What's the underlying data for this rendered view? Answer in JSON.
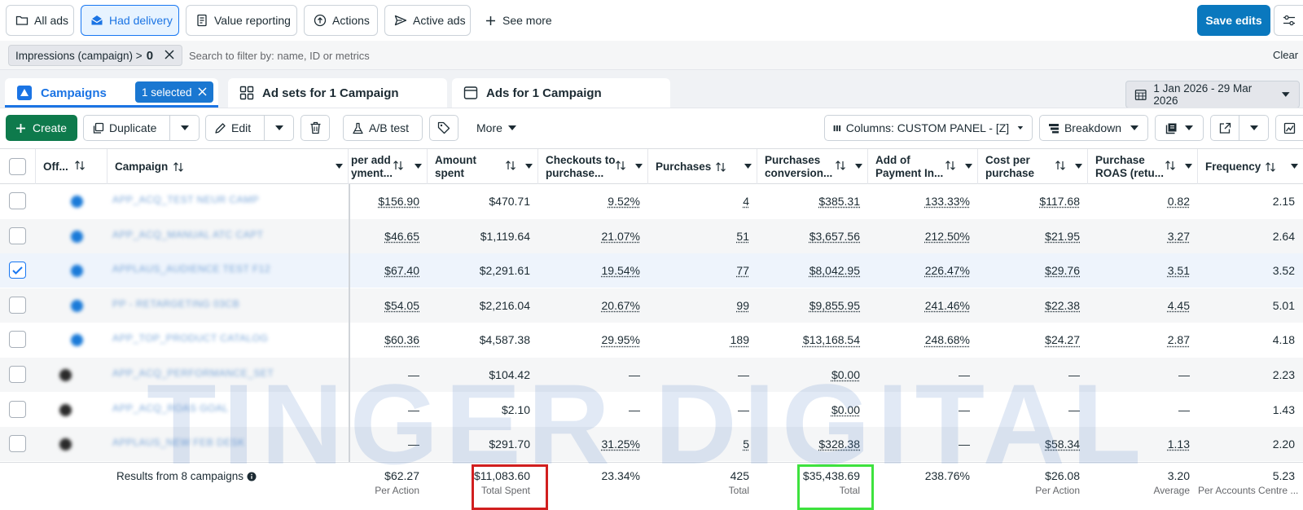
{
  "topbar": {
    "views": [
      {
        "label": "All ads",
        "icon": "folder-icon"
      },
      {
        "label": "Had delivery",
        "icon": "envelope-icon"
      },
      {
        "label": "Value reporting",
        "icon": "document-icon"
      },
      {
        "label": "Actions",
        "icon": "upload-icon"
      },
      {
        "label": "Active ads",
        "icon": "send-icon"
      }
    ],
    "see_more": "See more",
    "save_label": "Save edits"
  },
  "filter": {
    "chip_label": "Impressions (campaign) >",
    "chip_value": "0",
    "search_placeholder": "Search to filter by: name, ID or metrics",
    "clear_label": "Clear"
  },
  "tabs": {
    "campaigns": "Campaigns",
    "selected_badge": "1 selected",
    "adsets": "Ad sets for 1 Campaign",
    "ads": "Ads for 1 Campaign",
    "date_range": "1 Jan 2026 - 29 Mar 2026"
  },
  "toolbar": {
    "create": "Create",
    "duplicate": "Duplicate",
    "edit": "Edit",
    "ab_test": "A/B test",
    "more": "More",
    "columns": "Columns: CUSTOM PANEL - [Z]",
    "breakdown": "Breakdown"
  },
  "table": {
    "headers": {
      "off": "Off...",
      "campaign": "Campaign",
      "cost_per_add": [
        "per add",
        "yment..."
      ],
      "amount_spent": [
        "Amount",
        "spent"
      ],
      "checkouts": [
        "Checkouts to",
        "purchase..."
      ],
      "purchases": "Purchases",
      "purchases_conversion": [
        "Purchases",
        "conversion..."
      ],
      "add_payment": [
        "Add of",
        "Payment In..."
      ],
      "cost_per_purchase": [
        "Cost per",
        "purchase"
      ],
      "purchase_roas": [
        "Purchase",
        "ROAS (retu..."
      ],
      "frequency": "Frequency"
    },
    "rows": [
      {
        "status": "on",
        "checked": false,
        "name": "APP_ACQ_TEST NEUR CAMP",
        "cost_per_add": "$156.90",
        "amount_spent": "$470.71",
        "checkouts": "9.52%",
        "purchases": "4",
        "conv_value": "$385.31",
        "add_payment": "133.33%",
        "cost_per_purchase": "$117.68",
        "roas": "0.82",
        "frequency": "2.15"
      },
      {
        "status": "on",
        "checked": false,
        "name": "APP_ACQ_MANUAL ATC CAPT",
        "cost_per_add": "$46.65",
        "amount_spent": "$1,119.64",
        "checkouts": "21.07%",
        "purchases": "51",
        "conv_value": "$3,657.56",
        "add_payment": "212.50%",
        "cost_per_purchase": "$21.95",
        "roas": "3.27",
        "frequency": "2.64"
      },
      {
        "status": "on",
        "checked": true,
        "name": "APPLAUS_AUDIENCE TEST F12",
        "cost_per_add": "$67.40",
        "amount_spent": "$2,291.61",
        "checkouts": "19.54%",
        "purchases": "77",
        "conv_value": "$8,042.95",
        "add_payment": "226.47%",
        "cost_per_purchase": "$29.76",
        "roas": "3.51",
        "frequency": "3.52"
      },
      {
        "status": "on",
        "checked": false,
        "name": "PP - RETARGETING 03CB",
        "cost_per_add": "$54.05",
        "amount_spent": "$2,216.04",
        "checkouts": "20.67%",
        "purchases": "99",
        "conv_value": "$9,855.95",
        "add_payment": "241.46%",
        "cost_per_purchase": "$22.38",
        "roas": "4.45",
        "frequency": "5.01"
      },
      {
        "status": "on",
        "checked": false,
        "name": "APP_TOP_PRODUCT CATALOG",
        "cost_per_add": "$60.36",
        "amount_spent": "$4,587.38",
        "checkouts": "29.95%",
        "purchases": "189",
        "conv_value": "$13,168.54",
        "add_payment": "248.68%",
        "cost_per_purchase": "$24.27",
        "roas": "2.87",
        "frequency": "4.18"
      },
      {
        "status": "off",
        "checked": false,
        "name": "APP_ACQ_PERFORMANCE_SET",
        "cost_per_add": "—",
        "amount_spent": "$104.42",
        "checkouts": "—",
        "purchases": "—",
        "conv_value": "$0.00",
        "add_payment": "—",
        "cost_per_purchase": "—",
        "roas": "—",
        "frequency": "2.23"
      },
      {
        "status": "off",
        "checked": false,
        "name": "APP_ACQ_ROAS GOAL",
        "cost_per_add": "—",
        "amount_spent": "$2.10",
        "checkouts": "—",
        "purchases": "—",
        "conv_value": "$0.00",
        "add_payment": "—",
        "cost_per_purchase": "—",
        "roas": "—",
        "frequency": "1.43"
      },
      {
        "status": "off",
        "checked": false,
        "name": "APPLAUS_NEW FEB DESK",
        "cost_per_add": "—",
        "amount_spent": "$291.70",
        "checkouts": "31.25%",
        "purchases": "5",
        "conv_value": "$328.38",
        "add_payment": "—",
        "cost_per_purchase": "$58.34",
        "roas": "1.13",
        "frequency": "2.20"
      }
    ],
    "totals": {
      "label": "Results from 8 campaigns",
      "cost_per_add": {
        "v": "$62.27",
        "s": "Per Action"
      },
      "amount_spent": {
        "v": "$11,083.60",
        "s": "Total Spent"
      },
      "checkouts": {
        "v": "23.34%",
        "s": ""
      },
      "purchases": {
        "v": "425",
        "s": "Total"
      },
      "conv_value": {
        "v": "$35,438.69",
        "s": "Total"
      },
      "add_payment": {
        "v": "238.76%",
        "s": ""
      },
      "cost_per_purchase": {
        "v": "$26.08",
        "s": "Per Action"
      },
      "roas": {
        "v": "3.20",
        "s": "Average"
      },
      "frequency": {
        "v": "5.23",
        "s": "Per Accounts Centre ..."
      }
    }
  },
  "watermark": "TINGER DIGITAL",
  "colors": {
    "primary": "#0a78be",
    "create": "#0e7a4c",
    "highlight_red": "#d11f1f",
    "highlight_green": "#3ee23e"
  }
}
